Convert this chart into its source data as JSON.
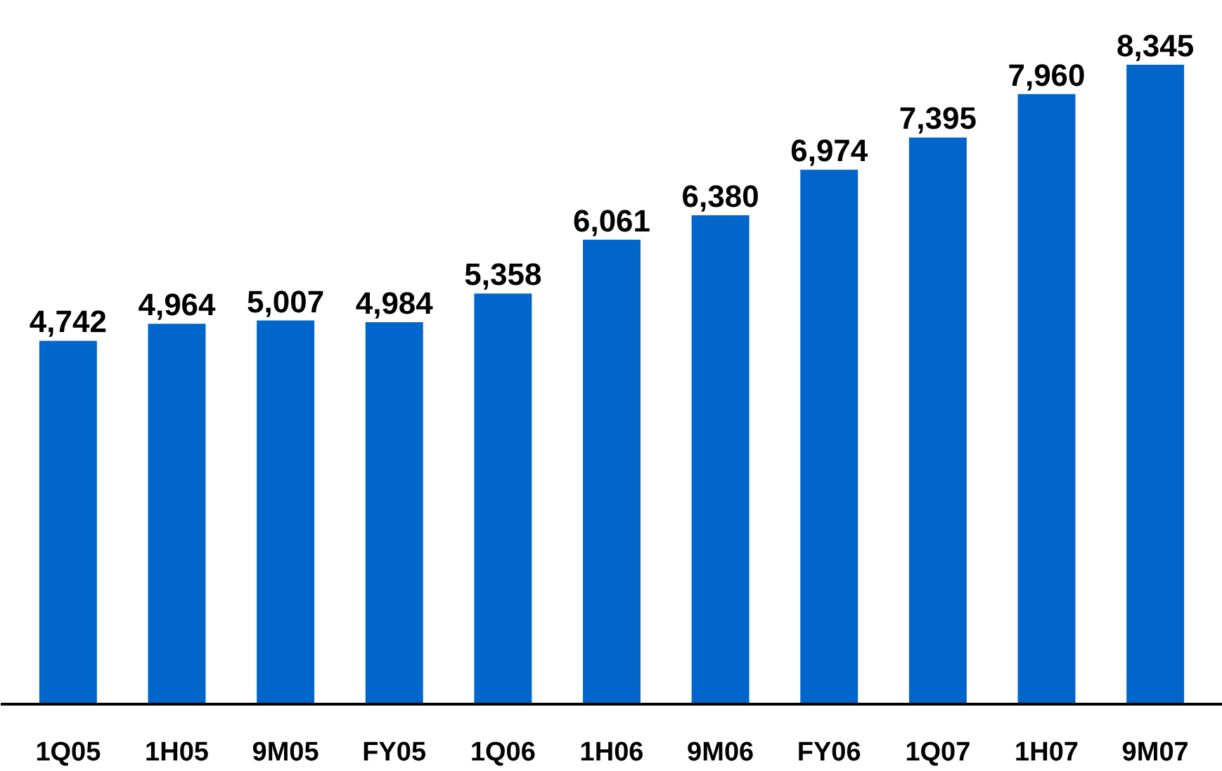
{
  "chart_data": {
    "type": "bar",
    "categories": [
      "1Q05",
      "1H05",
      "9M05",
      "FY05",
      "1Q06",
      "1H06",
      "9M06",
      "FY06",
      "1Q07",
      "1H07",
      "9M07"
    ],
    "values": [
      4742,
      4964,
      5007,
      4984,
      5358,
      6061,
      6380,
      6974,
      7395,
      7960,
      8345
    ],
    "color": "#0066cc",
    "data_labels": true,
    "value_labels": [
      "4,742",
      "4,964",
      "5,007",
      "4,984",
      "5,358",
      "6,061",
      "6,380",
      "6,974",
      "7,395",
      "7,960",
      "8,345"
    ],
    "grid": false,
    "tick_labels": "x"
  }
}
